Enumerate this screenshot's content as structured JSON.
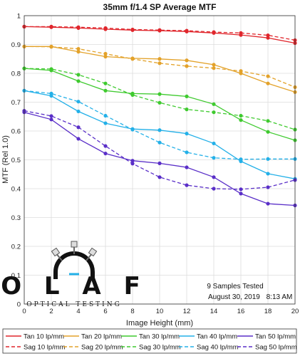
{
  "chart_data": {
    "type": "line",
    "title": "35mm f/1.4 SP Average MTF",
    "xlabel": "Image Height (mm)",
    "ylabel": "MTF (Rel 1.0)",
    "xlim": [
      0,
      20
    ],
    "ylim": [
      0,
      1
    ],
    "xticks": [
      "0",
      "2",
      "4",
      "6",
      "8",
      "10",
      "12",
      "14",
      "16",
      "18",
      "20"
    ],
    "yticks": [
      "0",
      "0.1",
      "0.2",
      "0.3",
      "0.4",
      "0.5",
      "0.6",
      "0.7",
      "0.8",
      "0.9",
      "1"
    ],
    "grid": true,
    "legend_position": "bottom",
    "x": [
      0,
      2,
      4,
      6,
      8,
      10,
      12,
      14,
      16,
      18,
      20
    ],
    "series": [
      {
        "name": "Tan 10 lp/mm",
        "color": "#e0262c",
        "dash": false,
        "values": [
          0.962,
          0.96,
          0.957,
          0.953,
          0.95,
          0.948,
          0.945,
          0.94,
          0.933,
          0.923,
          0.905
        ]
      },
      {
        "name": "Sag 10 lp/mm",
        "color": "#e0262c",
        "dash": true,
        "values": [
          0.962,
          0.962,
          0.96,
          0.957,
          0.952,
          0.95,
          0.948,
          0.943,
          0.94,
          0.932,
          0.915
        ]
      },
      {
        "name": "Tan 20 lp/mm",
        "color": "#e3a22a",
        "dash": false,
        "values": [
          0.893,
          0.893,
          0.875,
          0.858,
          0.852,
          0.85,
          0.845,
          0.83,
          0.8,
          0.765,
          0.735
        ]
      },
      {
        "name": "Sag 20 lp/mm",
        "color": "#e3a22a",
        "dash": true,
        "values": [
          0.893,
          0.892,
          0.885,
          0.868,
          0.85,
          0.835,
          0.825,
          0.818,
          0.808,
          0.79,
          0.752
        ]
      },
      {
        "name": "Tan 30 lp/mm",
        "color": "#3fca2f",
        "dash": false,
        "values": [
          0.817,
          0.81,
          0.773,
          0.74,
          0.73,
          0.728,
          0.72,
          0.693,
          0.638,
          0.597,
          0.568
        ]
      },
      {
        "name": "Sag 30 lp/mm",
        "color": "#3fca2f",
        "dash": true,
        "values": [
          0.817,
          0.815,
          0.795,
          0.765,
          0.725,
          0.698,
          0.675,
          0.665,
          0.653,
          0.635,
          0.605
        ]
      },
      {
        "name": "Tan 40 lp/mm",
        "color": "#23b0e8",
        "dash": false,
        "values": [
          0.74,
          0.722,
          0.668,
          0.627,
          0.607,
          0.603,
          0.591,
          0.557,
          0.495,
          0.452,
          0.434
        ]
      },
      {
        "name": "Sag 40 lp/mm",
        "color": "#23b0e8",
        "dash": true,
        "values": [
          0.74,
          0.73,
          0.702,
          0.653,
          0.605,
          0.56,
          0.526,
          0.507,
          0.502,
          0.503,
          0.503
        ]
      },
      {
        "name": "Tan 50 lp/mm",
        "color": "#5a2fc8",
        "dash": false,
        "values": [
          0.665,
          0.64,
          0.573,
          0.522,
          0.497,
          0.488,
          0.474,
          0.44,
          0.383,
          0.348,
          0.342
        ]
      },
      {
        "name": "Sag 50 lp/mm",
        "color": "#5a2fc8",
        "dash": true,
        "values": [
          0.67,
          0.652,
          0.613,
          0.548,
          0.487,
          0.44,
          0.412,
          0.4,
          0.398,
          0.405,
          0.43
        ]
      }
    ]
  },
  "annotations": {
    "samples": "9 Samples Tested",
    "date": "August 30, 2019",
    "time": "8:13 AM"
  },
  "logo": {
    "letters": "O L A F",
    "subtitle": "OPTICAL TESTING"
  }
}
